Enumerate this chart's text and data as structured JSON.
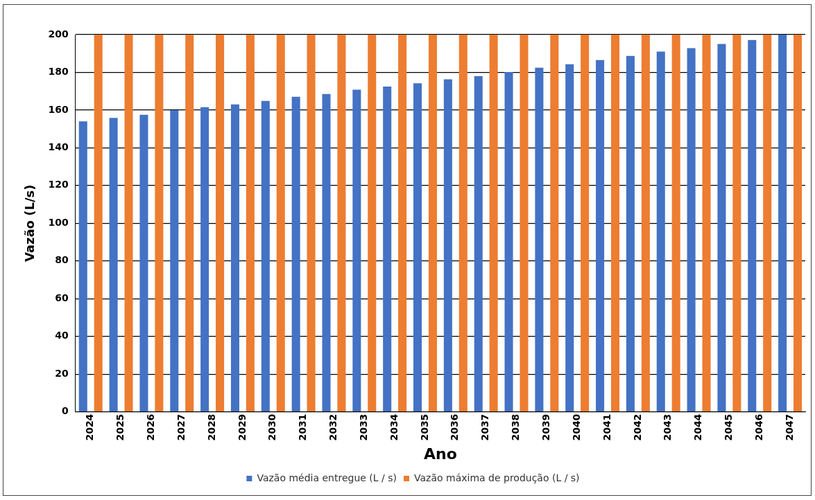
{
  "chart_data": {
    "type": "bar",
    "xlabel": "Ano",
    "ylabel": "Vazão (L/s)",
    "categories": [
      "2024",
      "2025",
      "2026",
      "2027",
      "2028",
      "2029",
      "2030",
      "2031",
      "2032",
      "2033",
      "2034",
      "2035",
      "2036",
      "2037",
      "2038",
      "2039",
      "2040",
      "2041",
      "2042",
      "2043",
      "2044",
      "2045",
      "2046",
      "2047"
    ],
    "series": [
      {
        "name": "Vazão média entregue (L / s)",
        "color": "#4472c4",
        "values": [
          154,
          155.8,
          157.5,
          160,
          161.5,
          163,
          164.8,
          167,
          168.5,
          170.8,
          172.5,
          174.2,
          176.3,
          178,
          180.2,
          182.5,
          184.3,
          186.5,
          188.7,
          191,
          192.8,
          195,
          197.2,
          200
        ]
      },
      {
        "name": "Vazão máxima de produção (L / s)",
        "color": "#ed7d31",
        "values": [
          200,
          200,
          200,
          200,
          200,
          200,
          200,
          200,
          200,
          200,
          200,
          200,
          200,
          200,
          200,
          200,
          200,
          200,
          200,
          200,
          200,
          200,
          200,
          200
        ]
      }
    ],
    "ylim": [
      0,
      200
    ],
    "yticks": [
      0,
      20,
      40,
      60,
      80,
      100,
      120,
      140,
      160,
      180,
      200
    ],
    "grid": "y",
    "legend": "bottom"
  }
}
